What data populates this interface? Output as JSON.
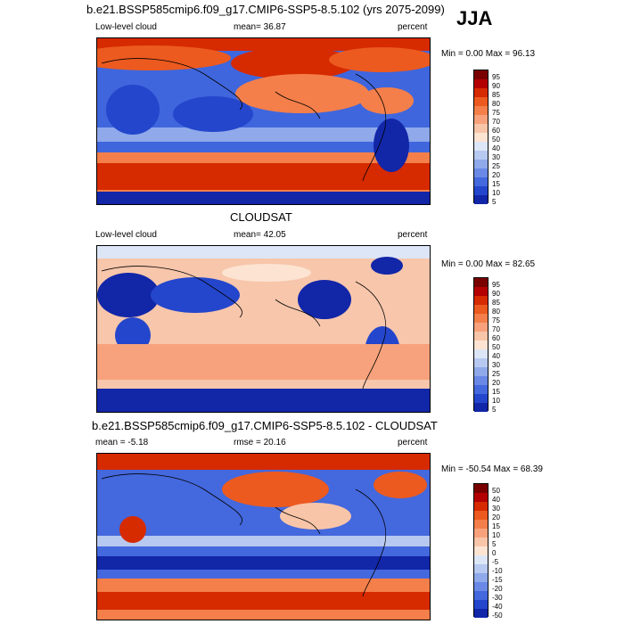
{
  "season": "JJA",
  "panels": [
    {
      "title": "b.e21.BSSP585cmip6.f09_g17.CMIP6-SSP5-8.5.102 (yrs 2075-2099)",
      "left": "Low-level cloud",
      "mid": "mean=  36.87",
      "right": "percent",
      "minmax": "Min =   0.00 Max =  96.13",
      "ticks": [
        "95",
        "90",
        "85",
        "80",
        "75",
        "70",
        "60",
        "50",
        "40",
        "30",
        "25",
        "20",
        "15",
        "10",
        "5"
      ]
    },
    {
      "title": "CLOUDSAT",
      "left": "Low-level cloud",
      "mid": "mean=  42.05",
      "right": "percent",
      "minmax": "Min =   0.00 Max =  82.65",
      "ticks": [
        "95",
        "90",
        "85",
        "80",
        "75",
        "70",
        "60",
        "50",
        "40",
        "30",
        "25",
        "20",
        "15",
        "10",
        "5"
      ]
    },
    {
      "title": "b.e21.BSSP585cmip6.f09_g17.CMIP6-SSP5-8.5.102 - CLOUDSAT",
      "left": "mean =  -5.18",
      "mid": "rmse =  20.16",
      "right": "percent",
      "minmax": "Min = -50.54 Max =  68.39",
      "ticks": [
        "50",
        "40",
        "30",
        "20",
        "15",
        "10",
        "5",
        "0",
        "-5",
        "-10",
        "-15",
        "-20",
        "-30",
        "-40",
        "-50"
      ]
    }
  ],
  "colors": {
    "scale": [
      "#7a0000",
      "#b30000",
      "#d62a00",
      "#ec5a1f",
      "#f47f4a",
      "#f7a27c",
      "#f9c5a8",
      "#fde4d2",
      "#dde6f7",
      "#b7c9f0",
      "#8fa9ea",
      "#6a89e6",
      "#4468dd",
      "#2446cc",
      "#1226a8",
      "#06138a"
    ]
  }
}
